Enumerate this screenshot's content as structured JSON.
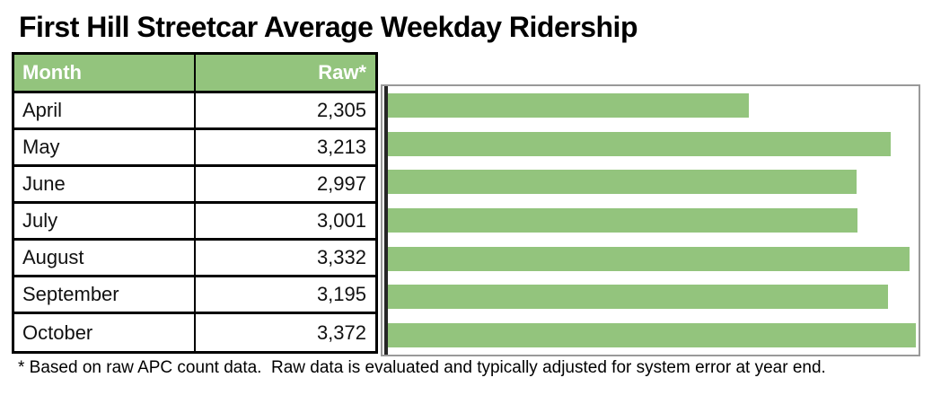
{
  "title": "First Hill Streetcar Average Weekday Ridership",
  "table": {
    "columns": {
      "month": "Month",
      "raw": "Raw*"
    },
    "rows": [
      {
        "month": "April",
        "raw": "2,305"
      },
      {
        "month": "May",
        "raw": "3,213"
      },
      {
        "month": "June",
        "raw": "2,997"
      },
      {
        "month": "July",
        "raw": "3,001"
      },
      {
        "month": "August",
        "raw": "3,332"
      },
      {
        "month": "September",
        "raw": "3,195"
      },
      {
        "month": "October",
        "raw": "3,372"
      }
    ]
  },
  "footnote": "* Based on raw APC count data.  Raw data is evaluated and typically adjusted for system error at year end.",
  "colors": {
    "bar_green": "#93c47d",
    "header_green": "#93c47d",
    "header_text": "#ffffff",
    "table_border": "#000000",
    "chart_border": "#999999",
    "axis_line": "#262626"
  },
  "chart_data": {
    "type": "bar",
    "orientation": "horizontal",
    "categories": [
      "April",
      "May",
      "June",
      "July",
      "August",
      "September",
      "October"
    ],
    "values": [
      2305,
      3213,
      2997,
      3001,
      3332,
      3195,
      3372
    ],
    "title": "",
    "xlabel": "",
    "ylabel": "",
    "xlim": [
      0,
      3380
    ],
    "grid": false,
    "legend": false,
    "bar_color": "#93c47d"
  }
}
